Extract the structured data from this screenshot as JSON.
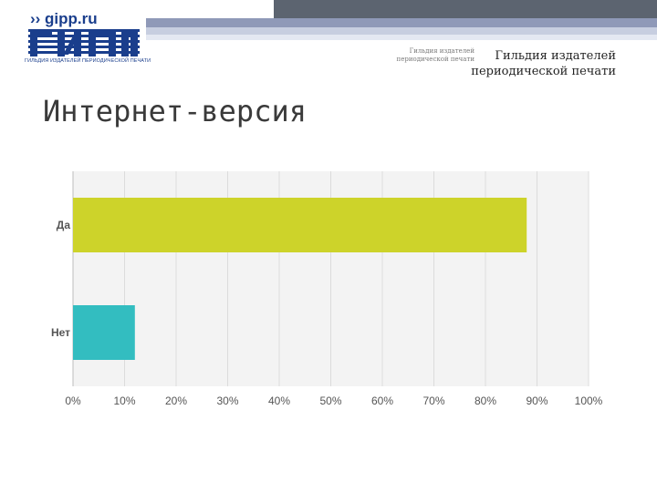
{
  "header": {
    "logo_url": "gipp.ru",
    "logo_caption": "ГИЛЬДИЯ ИЗДАТЕЛЕЙ ПЕРИОДИЧЕСКОЙ ПЕЧАТИ",
    "org_small_line1": "Гильдия издателей",
    "org_small_line2": "периодической печати",
    "org_line1": "Гильдия издателей",
    "org_line2": "периодической печати"
  },
  "slide": {
    "title": "Интернет-версия"
  },
  "colors": {
    "bar_da": "#cdd32a",
    "bar_net": "#33bdc0",
    "logo_blue": "#1a3e8c"
  },
  "chart_data": {
    "type": "bar",
    "orientation": "horizontal",
    "categories": [
      "Да",
      "Нет"
    ],
    "values": [
      88,
      12
    ],
    "unit": "%",
    "xlim": [
      0,
      100
    ],
    "xticks": [
      "0%",
      "10%",
      "20%",
      "30%",
      "40%",
      "50%",
      "60%",
      "70%",
      "80%",
      "90%",
      "100%"
    ],
    "grid": true
  }
}
